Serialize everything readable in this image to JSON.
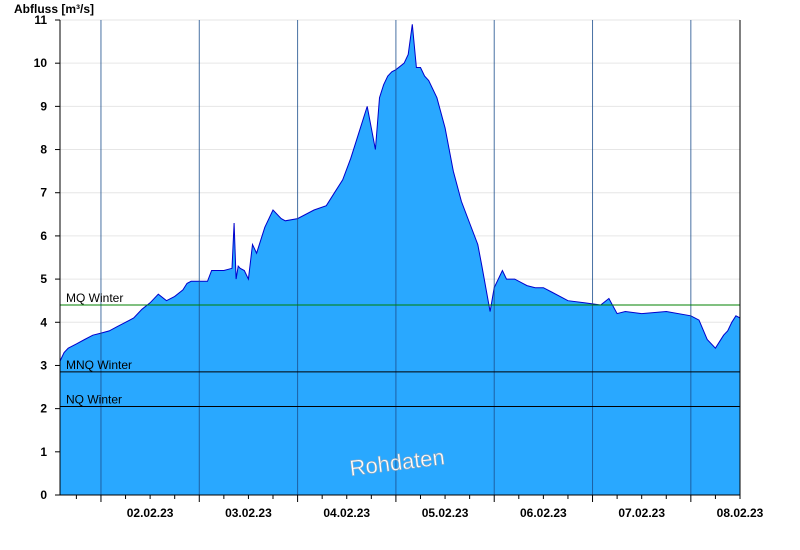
{
  "chart_data": {
    "type": "area",
    "ylabel": "Abfluss [m³/s]",
    "ylim": [
      0,
      11
    ],
    "yticks": [
      0,
      1,
      2,
      3,
      4,
      5,
      6,
      7,
      8,
      9,
      10,
      11
    ],
    "xlim": [
      "2023-02-01T14:00",
      "2023-02-08T12:00"
    ],
    "xtick_labels": [
      "02.02.23",
      "03.02.23",
      "04.02.23",
      "05.02.23",
      "06.02.23",
      "07.02.23",
      "08.02.23"
    ],
    "day_boundaries": [
      "2023-02-02T00:00",
      "2023-02-03T00:00",
      "2023-02-04T00:00",
      "2023-02-05T00:00",
      "2023-02-06T00:00",
      "2023-02-07T00:00",
      "2023-02-08T00:00"
    ],
    "reference_lines": [
      {
        "name": "MQ Winter",
        "value": 4.4,
        "color": "#008000"
      },
      {
        "name": "MNQ Winter",
        "value": 2.85,
        "color": "#000000"
      },
      {
        "name": "NQ Winter",
        "value": 2.05,
        "color": "#000000"
      }
    ],
    "watermark": "Rohdaten",
    "fill_color": "#29a8ff",
    "line_color": "#0000cc",
    "grid": true,
    "series": [
      {
        "x": [
          "2023-02-01T14:00",
          "2023-02-01T15:00",
          "2023-02-01T16:00",
          "2023-02-01T18:00",
          "2023-02-01T20:00",
          "2023-02-01T22:00",
          "2023-02-02T00:00",
          "2023-02-02T02:00",
          "2023-02-02T04:00",
          "2023-02-02T06:00",
          "2023-02-02T08:00",
          "2023-02-02T10:00",
          "2023-02-02T12:00",
          "2023-02-02T14:00",
          "2023-02-02T16:00",
          "2023-02-02T18:00",
          "2023-02-02T20:00",
          "2023-02-02T21:00",
          "2023-02-02T22:00",
          "2023-02-03T00:00",
          "2023-02-03T02:00",
          "2023-02-03T03:00",
          "2023-02-03T06:00",
          "2023-02-03T08:00",
          "2023-02-03T08:30",
          "2023-02-03T09:00",
          "2023-02-03T09:30",
          "2023-02-03T10:00",
          "2023-02-03T11:00",
          "2023-02-03T12:00",
          "2023-02-03T13:00",
          "2023-02-03T14:00",
          "2023-02-03T15:00",
          "2023-02-03T16:00",
          "2023-02-03T18:00",
          "2023-02-03T20:00",
          "2023-02-03T21:00",
          "2023-02-04T00:00",
          "2023-02-04T04:00",
          "2023-02-04T07:00",
          "2023-02-04T09:00",
          "2023-02-04T11:00",
          "2023-02-04T13:00",
          "2023-02-04T15:00",
          "2023-02-04T17:00",
          "2023-02-04T19:00",
          "2023-02-04T20:00",
          "2023-02-04T21:00",
          "2023-02-04T22:00",
          "2023-02-04T23:00",
          "2023-02-05T00:00",
          "2023-02-05T02:00",
          "2023-02-05T03:00",
          "2023-02-05T04:00",
          "2023-02-05T05:00",
          "2023-02-05T06:00",
          "2023-02-05T07:00",
          "2023-02-05T08:00",
          "2023-02-05T10:00",
          "2023-02-05T12:00",
          "2023-02-05T14:00",
          "2023-02-05T16:00",
          "2023-02-05T18:00",
          "2023-02-05T20:00",
          "2023-02-05T21:00",
          "2023-02-05T23:00",
          "2023-02-06T00:00",
          "2023-02-06T02:00",
          "2023-02-06T03:00",
          "2023-02-06T04:00",
          "2023-02-06T05:00",
          "2023-02-06T07:00",
          "2023-02-06T08:00",
          "2023-02-06T10:00",
          "2023-02-06T12:00",
          "2023-02-06T14:00",
          "2023-02-06T18:00",
          "2023-02-06T22:00",
          "2023-02-07T02:00",
          "2023-02-07T04:00",
          "2023-02-07T06:00",
          "2023-02-07T08:00",
          "2023-02-07T12:00",
          "2023-02-07T18:00",
          "2023-02-08T00:00",
          "2023-02-08T02:00",
          "2023-02-08T04:00",
          "2023-02-08T06:00",
          "2023-02-08T07:00",
          "2023-02-08T08:00",
          "2023-02-08T09:00",
          "2023-02-08T10:00",
          "2023-02-08T11:00",
          "2023-02-08T12:00"
        ],
        "y": [
          3.1,
          3.3,
          3.4,
          3.5,
          3.6,
          3.7,
          3.75,
          3.8,
          3.9,
          4.0,
          4.1,
          4.3,
          4.45,
          4.65,
          4.5,
          4.6,
          4.75,
          4.9,
          4.95,
          4.95,
          4.95,
          5.2,
          5.2,
          5.25,
          6.3,
          5.0,
          5.3,
          5.25,
          5.2,
          5.0,
          5.8,
          5.6,
          5.9,
          6.2,
          6.6,
          6.4,
          6.35,
          6.4,
          6.6,
          6.7,
          7.0,
          7.3,
          7.8,
          8.4,
          9.0,
          8.0,
          9.2,
          9.5,
          9.7,
          9.8,
          9.85,
          10.0,
          10.2,
          10.9,
          9.9,
          9.9,
          9.7,
          9.6,
          9.2,
          8.5,
          7.5,
          6.8,
          6.3,
          5.8,
          5.3,
          4.25,
          4.8,
          5.2,
          5.0,
          5.0,
          5.0,
          4.9,
          4.85,
          4.8,
          4.8,
          4.7,
          4.5,
          4.45,
          4.4,
          4.55,
          4.2,
          4.25,
          4.2,
          4.25,
          4.15,
          4.05,
          3.6,
          3.4,
          3.55,
          3.7,
          3.8,
          4.0,
          4.15,
          4.1
        ]
      }
    ]
  }
}
